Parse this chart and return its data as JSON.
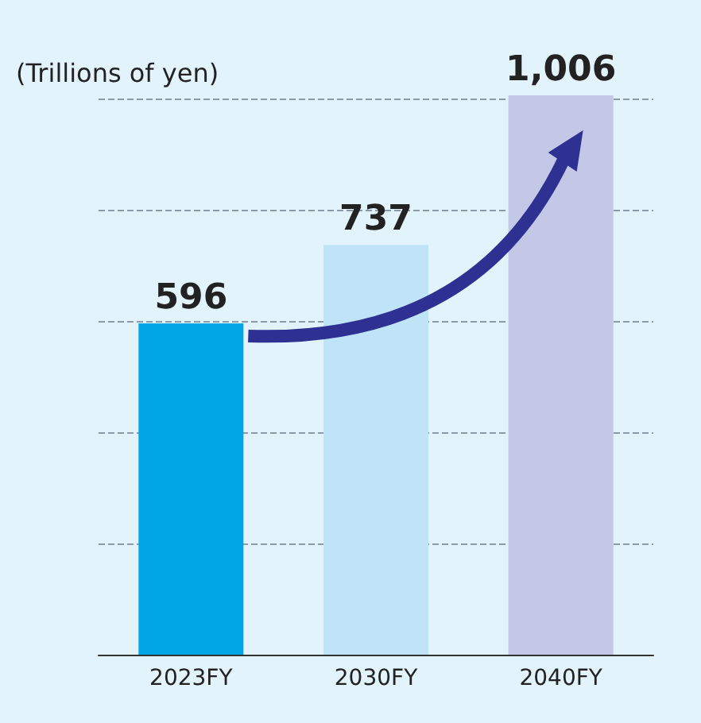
{
  "chart_data": {
    "type": "bar",
    "ylabel": "(Trillions of yen)",
    "categories": [
      "2023FY",
      "2030FY",
      "2040FY"
    ],
    "values": [
      596,
      737,
      1006
    ],
    "colors": [
      "#00a6e6",
      "#bfe4f7",
      "#c3c8e6"
    ],
    "value_labels": [
      "596",
      "737",
      "1,006"
    ],
    "ylim": [
      0,
      1006
    ],
    "yticks": [
      {
        "value": 0,
        "label": null
      },
      {
        "value": 200,
        "label": null
      },
      {
        "value": 400,
        "label": null
      },
      {
        "value": 600,
        "label": null
      },
      {
        "value": 800,
        "label": null
      },
      {
        "value": 1000,
        "label": null
      }
    ],
    "tick_labels": "x",
    "grid": "y"
  }
}
